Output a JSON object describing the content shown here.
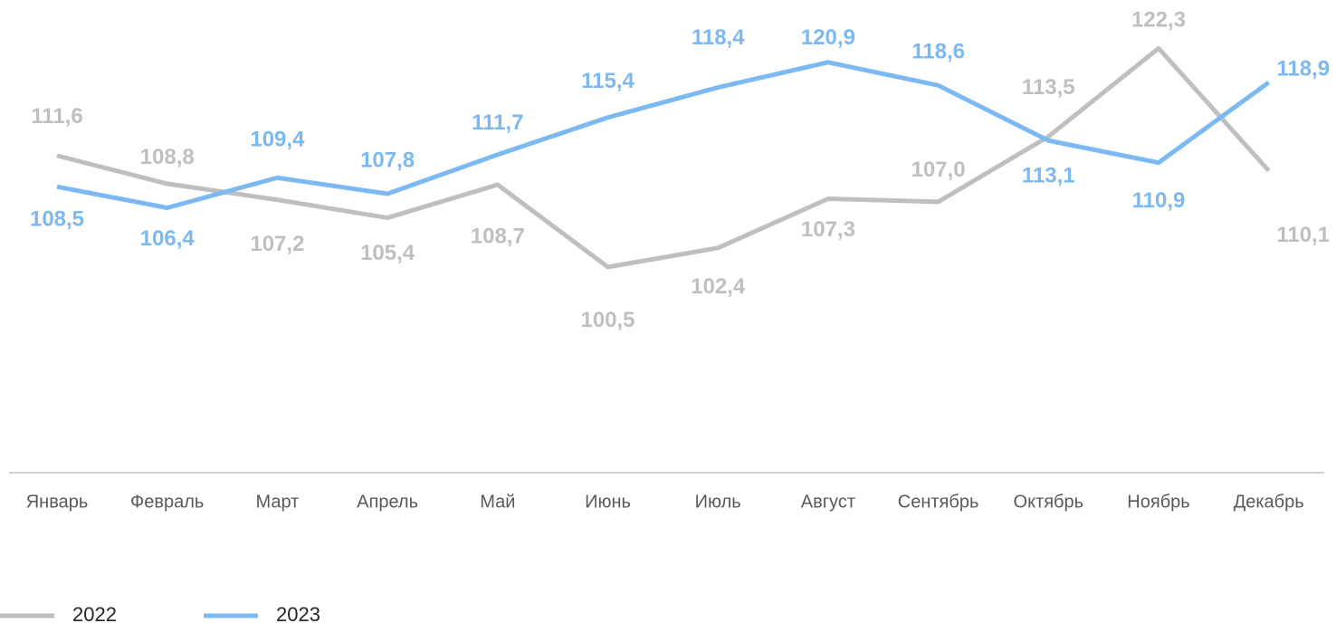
{
  "chart_data": {
    "type": "line",
    "categories": [
      "Январь",
      "Февраль",
      "Март",
      "Апрель",
      "Май",
      "Июнь",
      "Июль",
      "Август",
      "Сентябрь",
      "Октябрь",
      "Ноябрь",
      "Декабрь"
    ],
    "series": [
      {
        "name": "2022",
        "color": "#bfbfbf",
        "values": [
          111.6,
          108.8,
          107.2,
          105.4,
          108.7,
          100.5,
          102.4,
          107.3,
          107.0,
          113.5,
          122.3,
          110.1
        ],
        "value_labels": [
          "111,6",
          "108,8",
          "107,2",
          "105,4",
          "108,7",
          "100,5",
          "102,4",
          "107,3",
          "107,0",
          "113,5",
          "122,3",
          "110,1"
        ]
      },
      {
        "name": "2023",
        "color": "#7cb9f2",
        "values": [
          108.5,
          106.4,
          109.4,
          107.8,
          111.7,
          115.4,
          118.4,
          120.9,
          118.6,
          113.1,
          110.9,
          118.9
        ],
        "value_labels": [
          "108,5",
          "106,4",
          "109,4",
          "107,8",
          "111,7",
          "115,4",
          "118,4",
          "120,9",
          "118,6",
          "113,1",
          "110,9",
          "118,9"
        ]
      }
    ],
    "ylim": [
      80,
      125
    ],
    "legend": "bottom-left"
  }
}
